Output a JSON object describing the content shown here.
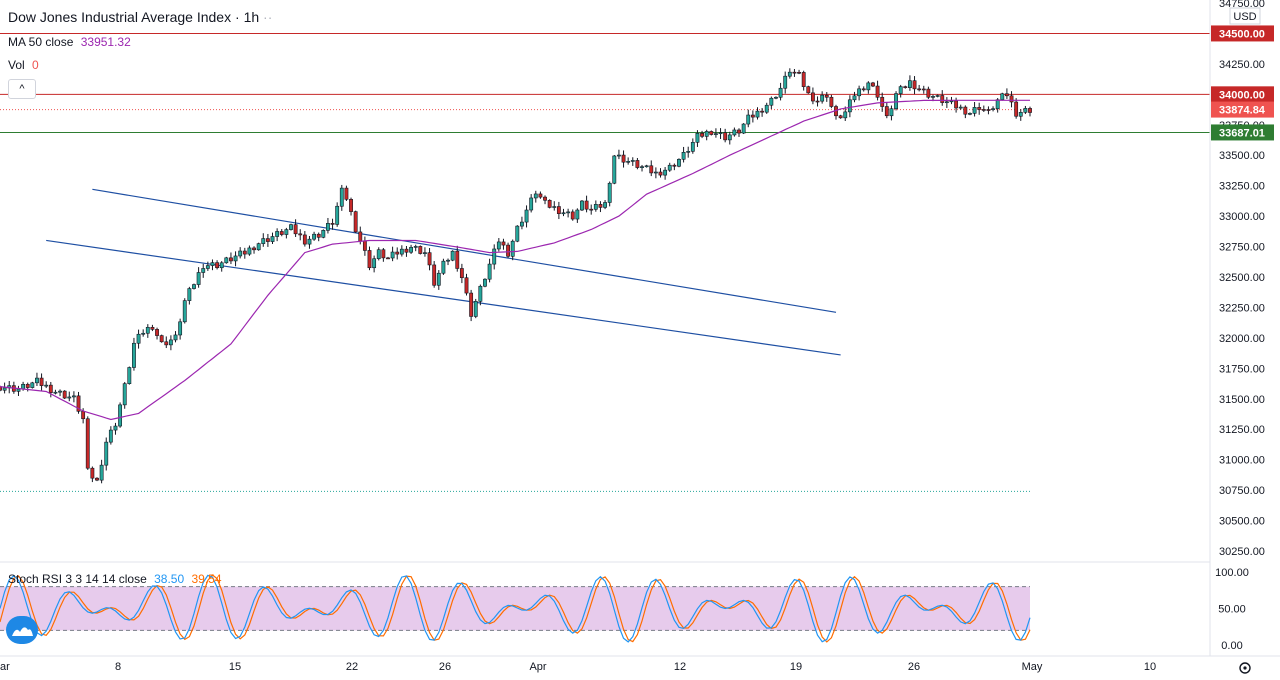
{
  "header": {
    "symbol": "Dow Jones Industrial Average Index",
    "separator": "·",
    "interval": "1h",
    "dots": "··"
  },
  "legend": {
    "ma_label": "MA 50 close",
    "ma_value": "33951.32",
    "vol_label": "Vol",
    "vol_value": "0",
    "stoch_label": "Stoch RSI 3 3 14 14 close",
    "stoch_k": "38.50",
    "stoch_d": "39.54",
    "collapse_icon": "^"
  },
  "colors": {
    "up": "#26a69a",
    "down": "#ef5350",
    "up_body": "#26a69a",
    "down_body": "#c62828",
    "ma": "#9c27b0",
    "resistance": "#c62828",
    "support": "#2e7d32",
    "channel": "#1e4fa3",
    "stoch_k": "#2196f3",
    "stoch_d": "#ff6d00",
    "stoch_band": "#e1bee7",
    "current_price": "#ef5350"
  },
  "chart_data": {
    "type": "candlestick",
    "currency": "USD",
    "y_axis": {
      "ticks": [
        30250,
        30500,
        30750,
        31000,
        31250,
        31500,
        31750,
        32000,
        32250,
        32500,
        32750,
        33000,
        33250,
        33500,
        33750,
        34000,
        34250,
        34500,
        34750
      ],
      "tick_labels": [
        "30250.00",
        "30500.00",
        "30750.00",
        "31000.00",
        "31250.00",
        "31500.00",
        "31750.00",
        "32000.00",
        "32250.00",
        "32500.00",
        "32750.00",
        "33000.00",
        "33250.00",
        "33500.00",
        "33750.00",
        "34000.00",
        "34250.00",
        "34500.00",
        "34750.00"
      ]
    },
    "x_axis": {
      "labels": [
        "ar",
        "8",
        "15",
        "22",
        "26",
        "Apr",
        "12",
        "19",
        "26",
        "May",
        "10"
      ],
      "positions": [
        0,
        118,
        235,
        352,
        445,
        538,
        680,
        796,
        914,
        1032,
        1150
      ]
    },
    "price_lines": [
      {
        "name": "resistance-34500",
        "value": 34500.0,
        "label": "34500.00",
        "color": "#c62828"
      },
      {
        "name": "resistance-34000",
        "value": 34000.0,
        "label": "34000.00",
        "color": "#c62828"
      },
      {
        "name": "current-price",
        "value": 33874.84,
        "label": "33874.84",
        "color": "#ef5350",
        "dotted": true
      },
      {
        "name": "support-33687",
        "value": 33687.01,
        "label": "33687.01",
        "color": "#2e7d32"
      },
      {
        "name": "low-dotted",
        "value": 30740,
        "label": "",
        "color": "#26a69a",
        "dotted": true
      }
    ],
    "channel": {
      "upper": [
        [
          20,
          33220
        ],
        [
          181,
          32210
        ]
      ],
      "lower": [
        [
          10,
          32800
        ],
        [
          182,
          31860
        ]
      ]
    },
    "close_path": [
      [
        0,
        31600
      ],
      [
        4,
        31580
      ],
      [
        8,
        31640
      ],
      [
        12,
        31560
      ],
      [
        16,
        31500
      ],
      [
        18,
        31330
      ],
      [
        19,
        30900
      ],
      [
        21,
        30820
      ],
      [
        23,
        31150
      ],
      [
        25,
        31300
      ],
      [
        27,
        31600
      ],
      [
        29,
        31950
      ],
      [
        31,
        32050
      ],
      [
        33,
        32100
      ],
      [
        35,
        31950
      ],
      [
        38,
        32000
      ],
      [
        40,
        32300
      ],
      [
        42,
        32450
      ],
      [
        44,
        32600
      ],
      [
        47,
        32600
      ],
      [
        50,
        32650
      ],
      [
        53,
        32700
      ],
      [
        56,
        32780
      ],
      [
        60,
        32850
      ],
      [
        63,
        32900
      ],
      [
        66,
        32800
      ],
      [
        69,
        32850
      ],
      [
        72,
        32950
      ],
      [
        74,
        33200
      ],
      [
        75,
        33150
      ],
      [
        77,
        32900
      ],
      [
        80,
        32600
      ],
      [
        82,
        32700
      ],
      [
        84,
        32650
      ],
      [
        86,
        32700
      ],
      [
        89,
        32750
      ],
      [
        92,
        32700
      ],
      [
        94,
        32450
      ],
      [
        96,
        32600
      ],
      [
        98,
        32700
      ],
      [
        100,
        32500
      ],
      [
        102,
        32200
      ],
      [
        104,
        32400
      ],
      [
        106,
        32600
      ],
      [
        108,
        32800
      ],
      [
        110,
        32700
      ],
      [
        112,
        32900
      ],
      [
        114,
        33050
      ],
      [
        116,
        33200
      ],
      [
        118,
        33100
      ],
      [
        121,
        33050
      ],
      [
        124,
        33000
      ],
      [
        126,
        33100
      ],
      [
        128,
        33050
      ],
      [
        131,
        33100
      ],
      [
        133,
        33500
      ],
      [
        136,
        33450
      ],
      [
        139,
        33400
      ],
      [
        142,
        33350
      ],
      [
        145,
        33400
      ],
      [
        148,
        33500
      ],
      [
        151,
        33650
      ],
      [
        154,
        33700
      ],
      [
        157,
        33650
      ],
      [
        160,
        33700
      ],
      [
        162,
        33800
      ],
      [
        164,
        33850
      ],
      [
        167,
        33950
      ],
      [
        169,
        34050
      ],
      [
        171,
        34200
      ],
      [
        173,
        34150
      ],
      [
        175,
        34000
      ],
      [
        177,
        33950
      ],
      [
        179,
        34000
      ],
      [
        181,
        33800
      ],
      [
        183,
        33850
      ],
      [
        185,
        34000
      ],
      [
        188,
        34100
      ],
      [
        190,
        34000
      ],
      [
        192,
        33800
      ],
      [
        194,
        34000
      ],
      [
        197,
        34100
      ],
      [
        199,
        34050
      ],
      [
        201,
        34000
      ],
      [
        204,
        33950
      ],
      [
        207,
        33900
      ],
      [
        210,
        33850
      ],
      [
        212,
        33900
      ],
      [
        214,
        33850
      ],
      [
        216,
        33950
      ],
      [
        218,
        34000
      ],
      [
        220,
        33850
      ],
      [
        223,
        33874.84
      ]
    ],
    "ma_path": [
      [
        0,
        31600
      ],
      [
        10,
        31560
      ],
      [
        18,
        31400
      ],
      [
        24,
        31330
      ],
      [
        30,
        31380
      ],
      [
        40,
        31650
      ],
      [
        50,
        31950
      ],
      [
        58,
        32350
      ],
      [
        66,
        32700
      ],
      [
        72,
        32770
      ],
      [
        80,
        32800
      ],
      [
        90,
        32800
      ],
      [
        100,
        32740
      ],
      [
        106,
        32700
      ],
      [
        112,
        32710
      ],
      [
        120,
        32780
      ],
      [
        128,
        32890
      ],
      [
        134,
        33000
      ],
      [
        140,
        33180
      ],
      [
        150,
        33350
      ],
      [
        158,
        33500
      ],
      [
        166,
        33640
      ],
      [
        174,
        33780
      ],
      [
        182,
        33880
      ],
      [
        190,
        33930
      ],
      [
        200,
        33950
      ],
      [
        210,
        33951
      ],
      [
        223,
        33951.32
      ]
    ],
    "stoch_rsi": {
      "ticks": [
        0,
        50,
        100
      ],
      "tick_labels": [
        "0.00",
        "50.00",
        "100.00"
      ],
      "overbought": 80,
      "oversold": 20
    }
  }
}
